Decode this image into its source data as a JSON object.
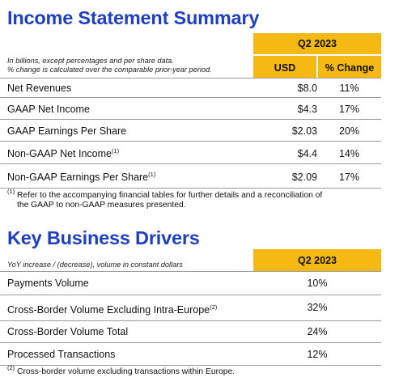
{
  "section1": {
    "title": "Income Statement Summary",
    "period": "Q2 2023",
    "note_line1": "In billions, except percentages and per share data.",
    "note_line2": "% change is calculated over the comparable prior-year period.",
    "col_usd": "USD",
    "col_change": "% Change",
    "rows": [
      {
        "label": "Net Revenues",
        "sup": "",
        "usd": "$8.0",
        "change": "11%"
      },
      {
        "label": "GAAP Net Income",
        "sup": "",
        "usd": "$4.3",
        "change": "17%"
      },
      {
        "label": "GAAP Earnings Per Share",
        "sup": "",
        "usd": "$2.03",
        "change": "20%"
      },
      {
        "label": "Non-GAAP Net Income",
        "sup": "(1)",
        "usd": "$4.4",
        "change": "14%"
      },
      {
        "label": "Non-GAAP Earnings Per Share",
        "sup": "(1)",
        "usd": "$2.09",
        "change": "17%"
      }
    ],
    "footnote_mark": "(1)",
    "footnote_line1": "Refer to the accompanying financial tables for further details and a reconciliation of",
    "footnote_line2": "the GAAP to non-GAAP measures presented."
  },
  "section2": {
    "title": "Key Business Drivers",
    "note": "YoY increase / (decrease), volume in constant dollars",
    "period": "Q2 2023",
    "rows": [
      {
        "label": "Payments Volume",
        "sup": "",
        "value": "10%"
      },
      {
        "label": "Cross-Border Volume Excluding Intra-Europe",
        "sup": "(2)",
        "value": "32%"
      },
      {
        "label": "Cross-Border Volume Total",
        "sup": "",
        "value": "24%"
      },
      {
        "label": "Processed Transactions",
        "sup": "",
        "value": "12%"
      }
    ],
    "footnote_mark": "(2)",
    "footnote_text": "Cross-border volume excluding transactions within Europe."
  },
  "colors": {
    "title_blue": "#1f3fbf",
    "header_gold": "#f6b914",
    "rule_gray": "#9a9a9a"
  }
}
